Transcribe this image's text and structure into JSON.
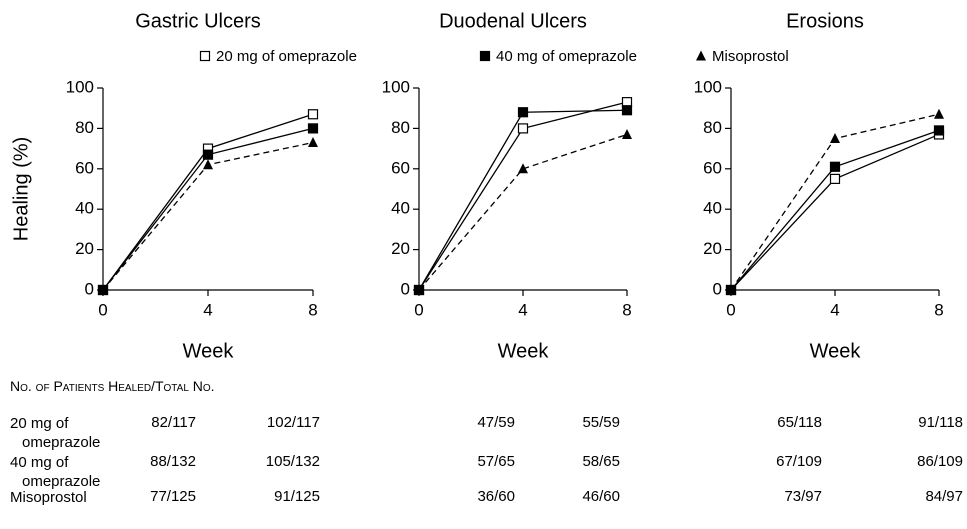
{
  "chart_data": [
    {
      "type": "line",
      "title": "Gastric Ulcers",
      "ylabel": "Healing (%)",
      "xlabel": "Week",
      "x": [
        0,
        4,
        8
      ],
      "xlim": [
        0,
        8
      ],
      "xticks": [
        0,
        4,
        8
      ],
      "ylim": [
        0,
        100
      ],
      "yticks": [
        0,
        20,
        40,
        60,
        80,
        100
      ],
      "series": [
        {
          "values": [
            0,
            70,
            87
          ]
        },
        {
          "values": [
            0,
            67,
            80
          ]
        },
        {
          "values": [
            0,
            62,
            73
          ]
        }
      ]
    },
    {
      "type": "line",
      "title": "Duodenal Ulcers",
      "xlabel": "Week",
      "x": [
        0,
        4,
        8
      ],
      "xlim": [
        0,
        8
      ],
      "xticks": [
        0,
        4,
        8
      ],
      "ylim": [
        0,
        100
      ],
      "yticks": [
        0,
        20,
        40,
        60,
        80,
        100
      ],
      "series": [
        {
          "values": [
            0,
            80,
            93
          ]
        },
        {
          "values": [
            0,
            88,
            89
          ]
        },
        {
          "values": [
            0,
            60,
            77
          ]
        }
      ]
    },
    {
      "type": "line",
      "title": "Erosions",
      "xlabel": "Week",
      "x": [
        0,
        4,
        8
      ],
      "xlim": [
        0,
        8
      ],
      "xticks": [
        0,
        4,
        8
      ],
      "ylim": [
        0,
        100
      ],
      "yticks": [
        0,
        20,
        40,
        60,
        80,
        100
      ],
      "series": [
        {
          "values": [
            0,
            55,
            77
          ]
        },
        {
          "values": [
            0,
            61,
            79
          ]
        },
        {
          "values": [
            0,
            75,
            87
          ]
        }
      ]
    }
  ],
  "legend": [
    {
      "name": "20 mg of omeprazole",
      "marker": "open-square",
      "dash": false,
      "color": "#000000"
    },
    {
      "name": "40 mg of omeprazole",
      "marker": "filled-square",
      "dash": false,
      "color": "#000000"
    },
    {
      "name": "Misoprostol",
      "marker": "triangle",
      "dash": true,
      "color": "#000000"
    }
  ],
  "table": {
    "title": "No. of Patients Healed/Total No.",
    "rows": [
      [
        "20 mg of omeprazole",
        "82/117",
        "102/117",
        "47/59",
        "55/59",
        "65/118",
        "91/118"
      ],
      [
        "40 mg of omeprazole",
        "88/132",
        "105/132",
        "57/65",
        "58/65",
        "67/109",
        "86/109"
      ],
      [
        "Misoprostol",
        "77/125",
        "91/125",
        "36/60",
        "46/60",
        "73/97",
        "84/97"
      ]
    ]
  }
}
